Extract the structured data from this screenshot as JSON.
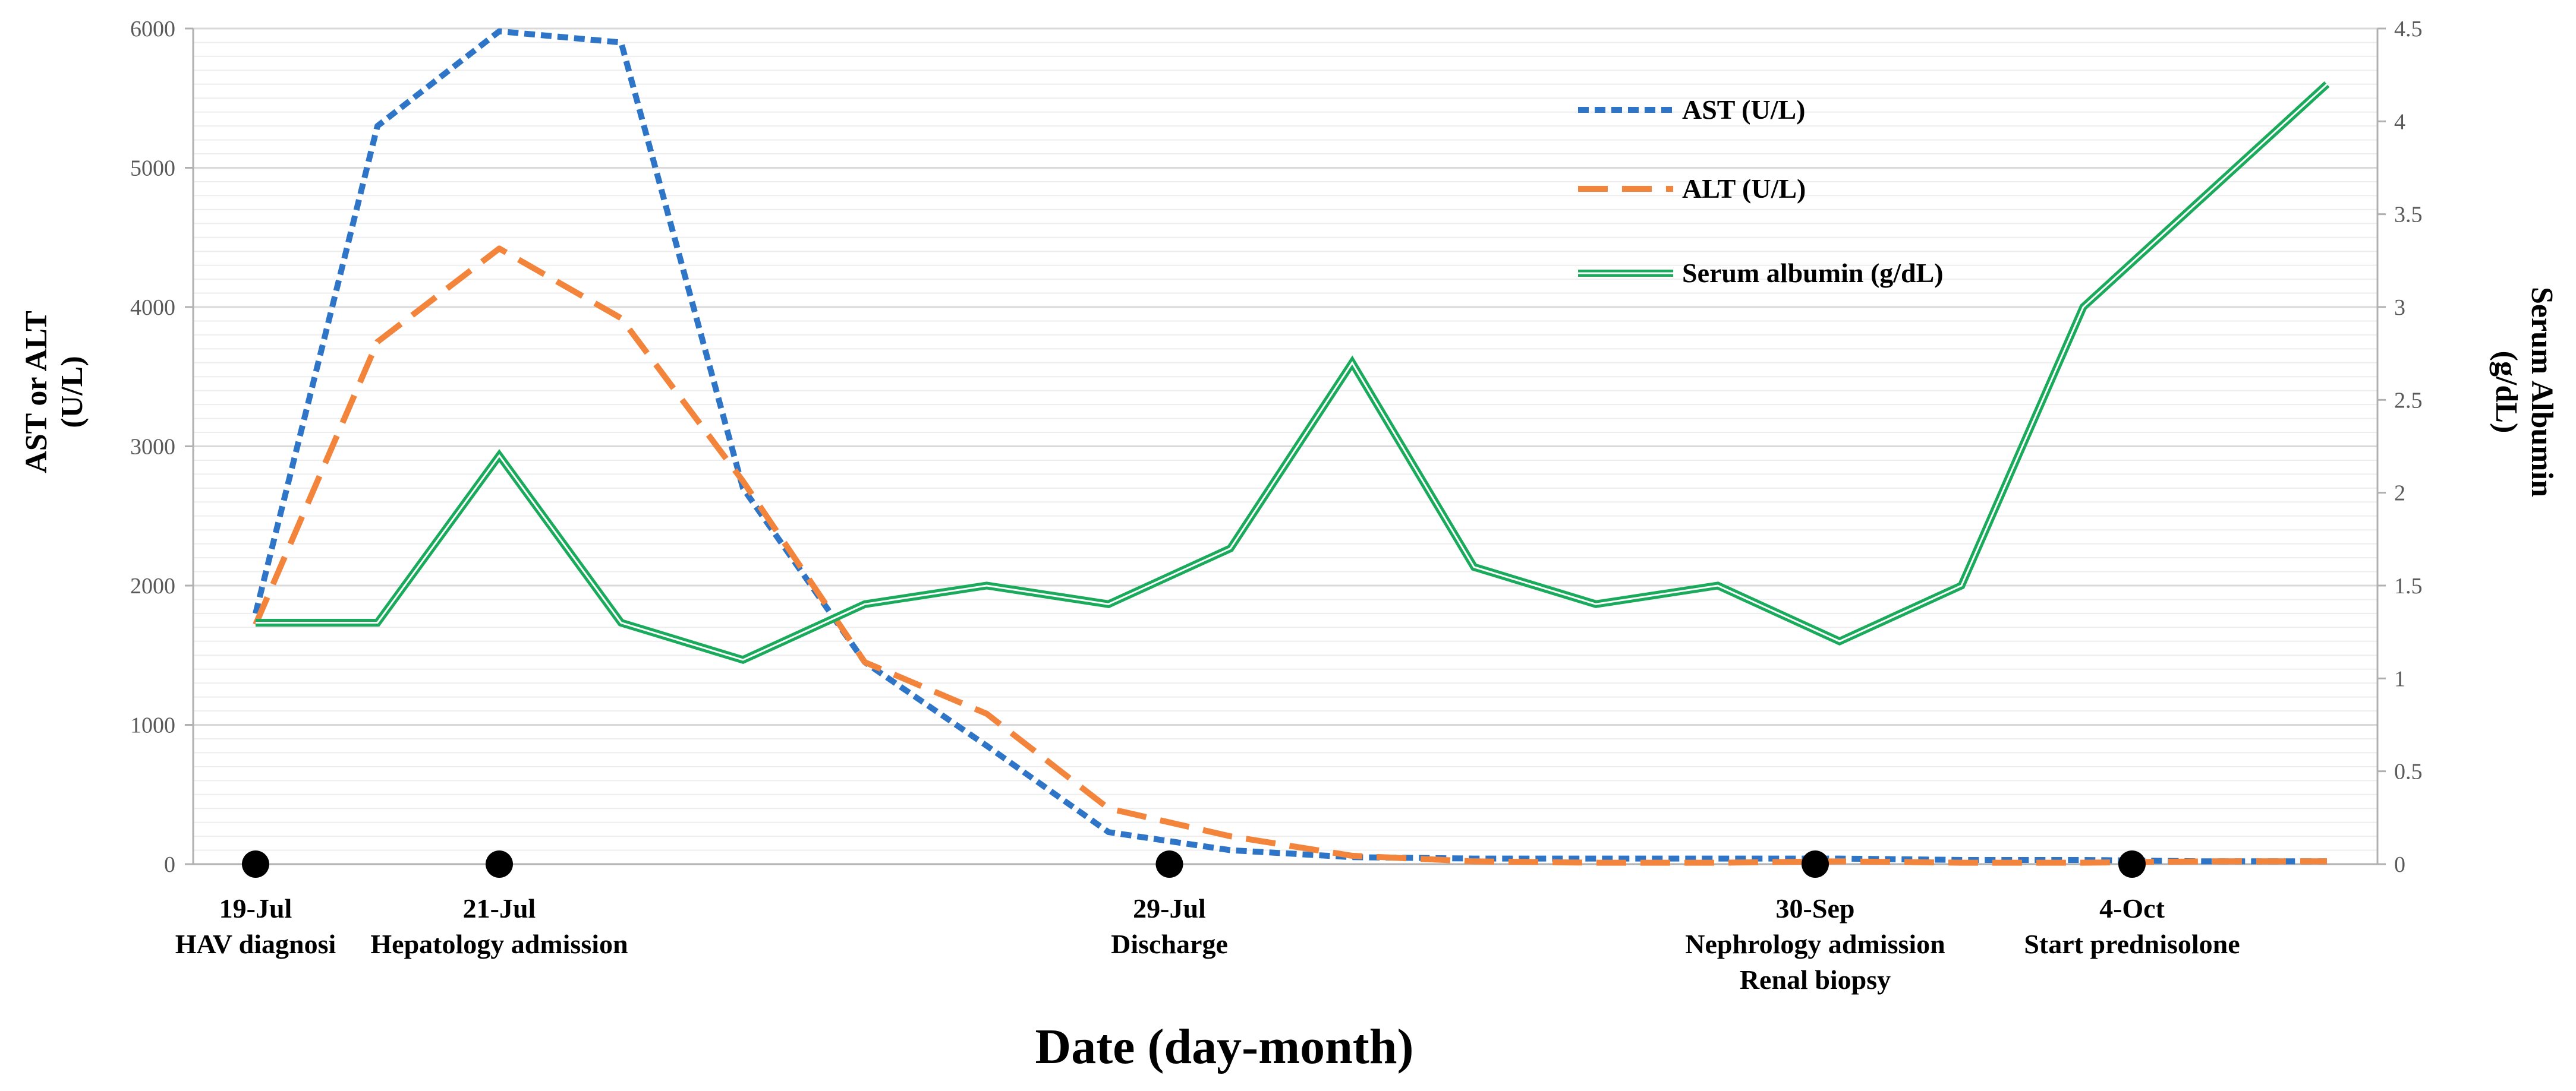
{
  "chart_data": {
    "type": "line",
    "xlabel": "Date (day-month)",
    "ylabel_left": "AST or ALT (U/L)",
    "ylabel_left_lines": [
      "AST or ALT",
      "(U/L)"
    ],
    "ylabel_right": "Serum Albumin (g/dL)",
    "ylabel_right_lines": [
      "Serum Albumin",
      "(g/dL)"
    ],
    "ylim_left": [
      0,
      6000
    ],
    "ylim_right": [
      0,
      4.5
    ],
    "yticks_left": [
      "0",
      "1000",
      "2000",
      "3000",
      "4000",
      "5000",
      "6000"
    ],
    "yticks_right": [
      "0",
      "0.5",
      "1",
      "1.5",
      "2",
      "2.5",
      "3",
      "3.5",
      "4",
      "4.5"
    ],
    "x_points": 18,
    "series": [
      {
        "name": "AST (U/L)",
        "axis": "left",
        "color": "#2e75c8",
        "style": "dotted",
        "values": [
          1800,
          5300,
          5980,
          5900,
          2700,
          1450,
          850,
          230,
          100,
          50,
          40,
          40,
          40,
          40,
          30,
          30,
          20,
          20
        ]
      },
      {
        "name": "ALT (U/L)",
        "axis": "left",
        "color": "#f2843c",
        "style": "dashed",
        "values": [
          1720,
          3750,
          4420,
          3920,
          2750,
          1450,
          1080,
          400,
          200,
          60,
          20,
          10,
          10,
          20,
          10,
          10,
          20,
          20
        ]
      },
      {
        "name": "Serum albumin (g/dL)",
        "axis": "right",
        "color": "#1aaa5c",
        "style": "double",
        "values": [
          1.3,
          1.3,
          2.2,
          1.3,
          1.1,
          1.4,
          1.5,
          1.4,
          1.7,
          2.7,
          1.6,
          1.4,
          1.5,
          1.2,
          1.5,
          3.0,
          3.6,
          4.2
        ]
      }
    ],
    "events": [
      {
        "x_index": 0,
        "lines": [
          "19-Jul",
          "HAV diagnosi"
        ]
      },
      {
        "x_index": 2,
        "lines": [
          "21-Jul",
          "Hepatology admission"
        ]
      },
      {
        "x_index": 7.5,
        "lines": [
          "29-Jul",
          "Discharge"
        ]
      },
      {
        "x_index": 12.8,
        "lines": [
          "30-Sep",
          "Nephrology admission",
          "Renal biopsy"
        ]
      },
      {
        "x_index": 15.4,
        "lines": [
          "4-Oct",
          "Start prednisolone"
        ]
      }
    ],
    "legend_position": "top-right"
  }
}
